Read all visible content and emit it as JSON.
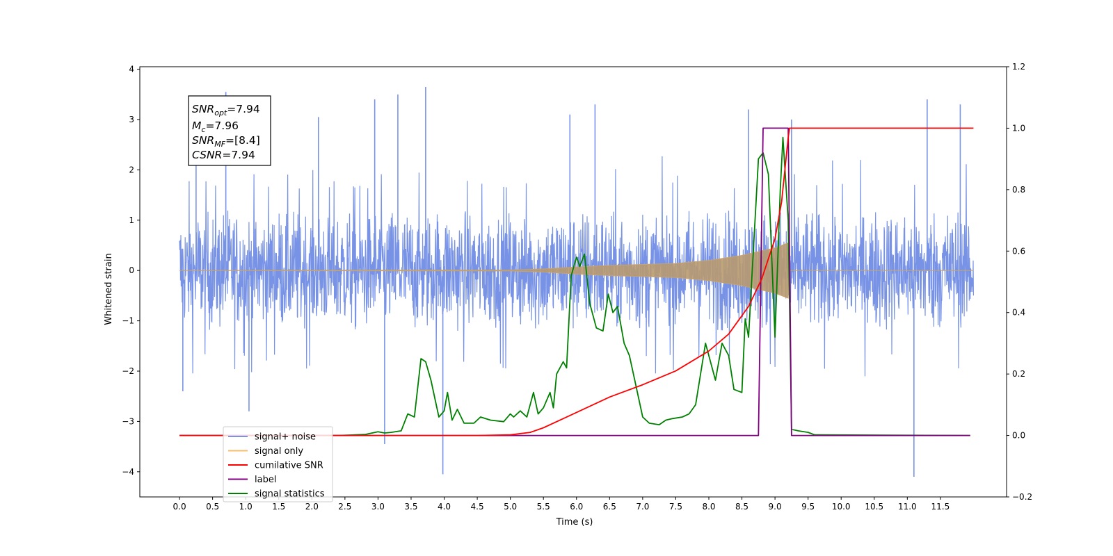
{
  "chart_data": {
    "type": "line",
    "xlabel": "Time (s)",
    "ylabel": "Whitened strain",
    "xlim": [
      -0.6,
      12.5
    ],
    "ylim_left": [
      -4.5,
      4.05
    ],
    "ylim_right": [
      -0.2,
      1.2
    ],
    "x_ticks": [
      "0.0",
      "0.5",
      "1.0",
      "1.5",
      "2.0",
      "2.5",
      "3.0",
      "3.5",
      "4.0",
      "4.5",
      "5.0",
      "5.5",
      "6.0",
      "6.5",
      "7.0",
      "7.5",
      "8.0",
      "8.5",
      "9.0",
      "9.5",
      "10.0",
      "10.5",
      "11.0",
      "11.5"
    ],
    "y_ticks_left": [
      "4",
      "3",
      "2",
      "1",
      "0",
      "−1",
      "−2",
      "−3",
      "−4"
    ],
    "y_ticks_right": [
      "1.2",
      "1.0",
      "0.8",
      "0.6",
      "0.4",
      "0.2",
      "0.0",
      "−0.2"
    ],
    "annotation": {
      "snr_opt": "=7.94",
      "mc": "=7.96",
      "snr_mf": "=[8.4]",
      "csnr": "=7.94"
    },
    "legend": [
      {
        "name": "signal+ noise",
        "color": "#7893e6"
      },
      {
        "name": "signal only",
        "color": "#f5be6c"
      },
      {
        "name": "cumilative SNR",
        "color": "#ff0000"
      },
      {
        "name": "label",
        "color": "#800080"
      },
      {
        "name": "signal statistics",
        "color": "#008000"
      }
    ],
    "legend_placement": "lower-left",
    "series": [
      {
        "name": "signal+ noise",
        "axis": "left",
        "color": "#7893e6",
        "x_range": [
          0.0,
          12.0
        ],
        "amplitude_envelope": [
          -2.0,
          2.0
        ],
        "peaks": [
          [
            0.05,
            -2.4
          ],
          [
            0.25,
            2.5
          ],
          [
            0.7,
            3.55
          ],
          [
            1.05,
            -2.8
          ],
          [
            2.1,
            3.05
          ],
          [
            2.95,
            3.4
          ],
          [
            3.1,
            -3.45
          ],
          [
            3.3,
            3.5
          ],
          [
            3.72,
            3.65
          ],
          [
            3.98,
            -4.05
          ],
          [
            5.9,
            3.1
          ],
          [
            6.28,
            3.3
          ],
          [
            8.6,
            3.2
          ],
          [
            11.1,
            -4.1
          ],
          [
            11.3,
            3.4
          ],
          [
            11.8,
            3.3
          ],
          [
            9.25,
            3.0
          ]
        ]
      },
      {
        "name": "signal only",
        "axis": "left",
        "color": "#f5be6c",
        "envelope": [
          [
            0.0,
            0.0
          ],
          [
            5.0,
            0.01
          ],
          [
            5.5,
            0.03
          ],
          [
            6.0,
            0.07
          ],
          [
            6.5,
            0.1
          ],
          [
            7.0,
            0.12
          ],
          [
            7.5,
            0.14
          ],
          [
            8.0,
            0.2
          ],
          [
            8.5,
            0.3
          ],
          [
            9.0,
            0.45
          ],
          [
            9.2,
            0.55
          ],
          [
            9.22,
            0.0
          ],
          [
            12.0,
            0.0
          ]
        ]
      },
      {
        "name": "cumilative SNR",
        "axis": "right",
        "points": [
          [
            0.0,
            0.0
          ],
          [
            4.5,
            0.0
          ],
          [
            5.0,
            0.002
          ],
          [
            5.3,
            0.01
          ],
          [
            5.5,
            0.025
          ],
          [
            5.8,
            0.055
          ],
          [
            6.0,
            0.075
          ],
          [
            6.5,
            0.125
          ],
          [
            7.0,
            0.165
          ],
          [
            7.5,
            0.21
          ],
          [
            8.0,
            0.275
          ],
          [
            8.3,
            0.33
          ],
          [
            8.6,
            0.42
          ],
          [
            8.8,
            0.51
          ],
          [
            9.0,
            0.64
          ],
          [
            9.1,
            0.76
          ],
          [
            9.2,
            0.97
          ],
          [
            9.22,
            1.0
          ],
          [
            12.0,
            1.0
          ]
        ]
      },
      {
        "name": "label",
        "axis": "right",
        "points": [
          [
            0.0,
            0.0
          ],
          [
            8.75,
            0.0
          ],
          [
            8.82,
            1.0
          ],
          [
            9.2,
            1.0
          ],
          [
            9.25,
            0.0
          ],
          [
            11.95,
            0.0
          ]
        ]
      },
      {
        "name": "signal statistics",
        "axis": "right",
        "points": [
          [
            0.0,
            0.0
          ],
          [
            2.4,
            0.0
          ],
          [
            2.8,
            0.003
          ],
          [
            3.0,
            0.012
          ],
          [
            3.1,
            0.008
          ],
          [
            3.2,
            0.01
          ],
          [
            3.35,
            0.015
          ],
          [
            3.45,
            0.07
          ],
          [
            3.55,
            0.06
          ],
          [
            3.65,
            0.25
          ],
          [
            3.72,
            0.24
          ],
          [
            3.8,
            0.18
          ],
          [
            3.92,
            0.06
          ],
          [
            4.0,
            0.08
          ],
          [
            4.05,
            0.14
          ],
          [
            4.12,
            0.05
          ],
          [
            4.2,
            0.085
          ],
          [
            4.3,
            0.04
          ],
          [
            4.45,
            0.04
          ],
          [
            4.55,
            0.06
          ],
          [
            4.7,
            0.05
          ],
          [
            4.9,
            0.045
          ],
          [
            5.0,
            0.07
          ],
          [
            5.05,
            0.06
          ],
          [
            5.15,
            0.08
          ],
          [
            5.25,
            0.06
          ],
          [
            5.35,
            0.14
          ],
          [
            5.42,
            0.07
          ],
          [
            5.5,
            0.09
          ],
          [
            5.6,
            0.14
          ],
          [
            5.65,
            0.09
          ],
          [
            5.7,
            0.2
          ],
          [
            5.8,
            0.24
          ],
          [
            5.85,
            0.22
          ],
          [
            5.92,
            0.52
          ],
          [
            6.0,
            0.58
          ],
          [
            6.05,
            0.55
          ],
          [
            6.12,
            0.59
          ],
          [
            6.2,
            0.43
          ],
          [
            6.3,
            0.35
          ],
          [
            6.4,
            0.34
          ],
          [
            6.48,
            0.46
          ],
          [
            6.55,
            0.4
          ],
          [
            6.62,
            0.42
          ],
          [
            6.72,
            0.3
          ],
          [
            6.8,
            0.26
          ],
          [
            6.9,
            0.16
          ],
          [
            7.0,
            0.06
          ],
          [
            7.1,
            0.04
          ],
          [
            7.25,
            0.035
          ],
          [
            7.35,
            0.05
          ],
          [
            7.45,
            0.055
          ],
          [
            7.6,
            0.06
          ],
          [
            7.7,
            0.07
          ],
          [
            7.8,
            0.1
          ],
          [
            7.95,
            0.3
          ],
          [
            8.1,
            0.18
          ],
          [
            8.2,
            0.3
          ],
          [
            8.3,
            0.26
          ],
          [
            8.38,
            0.15
          ],
          [
            8.5,
            0.14
          ],
          [
            8.55,
            0.38
          ],
          [
            8.6,
            0.32
          ],
          [
            8.75,
            0.9
          ],
          [
            8.82,
            0.92
          ],
          [
            8.9,
            0.85
          ],
          [
            9.0,
            0.32
          ],
          [
            9.08,
            0.8
          ],
          [
            9.12,
            0.97
          ],
          [
            9.2,
            0.7
          ],
          [
            9.25,
            0.02
          ],
          [
            9.35,
            0.015
          ],
          [
            9.5,
            0.01
          ],
          [
            9.6,
            0.002
          ],
          [
            11.95,
            0.0
          ]
        ]
      }
    ]
  }
}
